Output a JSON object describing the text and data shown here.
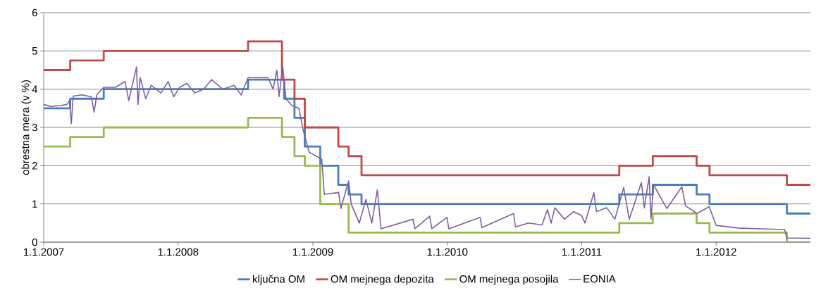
{
  "chart_data": {
    "type": "step",
    "ylabel": "obrestna mera (v %)",
    "ylim": [
      0,
      6
    ],
    "yticks": [
      0,
      1,
      2,
      3,
      4,
      5,
      6
    ],
    "xlim": [
      "2007-01-01",
      "2012-09-13"
    ],
    "xticks": [
      {
        "value": "2007-01-01",
        "label": "1.1.2007"
      },
      {
        "value": "2008-01-01",
        "label": "1.1.2008"
      },
      {
        "value": "2009-01-01",
        "label": "1.1.2009"
      },
      {
        "value": "2010-01-01",
        "label": "1.1.2010"
      },
      {
        "value": "2011-01-01",
        "label": "1.1.2011"
      },
      {
        "value": "2012-01-01",
        "label": "1.1.2012"
      }
    ],
    "grid": "y",
    "legend": "bottom",
    "marker": "none",
    "line_style": "solid",
    "series": [
      {
        "name": "ključna OM",
        "color": "#4a7ebb",
        "x": [
          "2007-01-01",
          "2007-03-14",
          "2007-06-13",
          "2008-07-09",
          "2008-10-15",
          "2008-11-12",
          "2008-12-10",
          "2009-01-21",
          "2009-03-11",
          "2009-04-08",
          "2009-05-13",
          "2011-04-13",
          "2011-07-13",
          "2011-11-09",
          "2011-12-14",
          "2012-07-11",
          "2012-09-13"
        ],
        "values": [
          3.5,
          3.75,
          4.0,
          4.25,
          3.75,
          3.25,
          2.5,
          2.0,
          1.5,
          1.25,
          1.0,
          1.25,
          1.5,
          1.25,
          1.0,
          0.75,
          0.75
        ]
      },
      {
        "name": "OM mejnega depozita",
        "color": "#be4b48",
        "x": [
          "2007-01-01",
          "2007-03-14",
          "2007-06-13",
          "2008-07-09",
          "2008-10-09",
          "2008-11-12",
          "2008-12-10",
          "2009-03-11",
          "2009-04-08",
          "2009-05-13",
          "2011-04-13",
          "2011-07-13",
          "2011-11-09",
          "2011-12-14",
          "2012-07-11",
          "2012-09-13"
        ],
        "values": [
          4.5,
          4.75,
          5.0,
          5.25,
          4.25,
          3.75,
          3.0,
          2.5,
          2.25,
          1.75,
          2.0,
          2.25,
          2.0,
          1.75,
          1.5,
          1.5
        ]
      },
      {
        "name": "OM mejnega posojila",
        "color": "#98b954",
        "x": [
          "2007-01-01",
          "2007-03-14",
          "2007-06-13",
          "2008-07-09",
          "2008-10-09",
          "2008-11-12",
          "2008-12-10",
          "2009-01-21",
          "2009-04-08",
          "2011-04-13",
          "2011-07-13",
          "2011-11-09",
          "2011-12-14",
          "2012-07-11",
          "2012-09-13"
        ],
        "values": [
          2.5,
          2.75,
          3.0,
          3.25,
          2.75,
          2.25,
          2.0,
          1.0,
          0.25,
          0.5,
          0.75,
          0.5,
          0.25,
          0.0,
          0.0
        ]
      },
      {
        "name": "EONIA",
        "type": "line",
        "color": "#7d60a0",
        "x": [
          "2007-01-01",
          "2007-01-20",
          "2007-02-15",
          "2007-03-05",
          "2007-03-12",
          "2007-03-17",
          "2007-03-22",
          "2007-04-15",
          "2007-05-10",
          "2007-05-18",
          "2007-05-25",
          "2007-06-13",
          "2007-07-15",
          "2007-08-10",
          "2007-08-20",
          "2007-09-10",
          "2007-09-14",
          "2007-09-20",
          "2007-10-05",
          "2007-10-20",
          "2007-11-15",
          "2007-12-05",
          "2007-12-20",
          "2008-01-05",
          "2008-01-25",
          "2008-02-15",
          "2008-03-10",
          "2008-04-01",
          "2008-05-01",
          "2008-06-01",
          "2008-06-20",
          "2008-07-09",
          "2008-08-01",
          "2008-09-01",
          "2008-09-15",
          "2008-09-25",
          "2008-10-01",
          "2008-10-11",
          "2008-10-20",
          "2008-11-05",
          "2008-11-24",
          "2008-12-05",
          "2008-12-22",
          "2009-01-25",
          "2009-02-01",
          "2009-03-12",
          "2009-03-18",
          "2009-04-08",
          "2009-04-15",
          "2009-05-07",
          "2009-05-25",
          "2009-06-10",
          "2009-06-25",
          "2009-07-05",
          "2009-09-30",
          "2009-10-05",
          "2009-11-14",
          "2009-11-20",
          "2009-12-31",
          "2010-01-05",
          "2010-03-31",
          "2010-04-05",
          "2010-06-30",
          "2010-07-05",
          "2010-08-10",
          "2010-09-15",
          "2010-09-30",
          "2010-10-10",
          "2010-10-20",
          "2010-11-15",
          "2010-12-10",
          "2010-12-31",
          "2011-01-10",
          "2011-02-03",
          "2011-02-10",
          "2011-03-10",
          "2011-04-01",
          "2011-04-25",
          "2011-05-10",
          "2011-06-12",
          "2011-06-20",
          "2011-07-03",
          "2011-07-08",
          "2011-07-15",
          "2011-08-20",
          "2011-09-30",
          "2011-10-10",
          "2011-11-10",
          "2011-12-13",
          "2012-01-01",
          "2012-03-01",
          "2012-05-01",
          "2012-07-05",
          "2012-07-11",
          "2012-09-13"
        ],
        "values": [
          3.6,
          3.55,
          3.57,
          3.6,
          3.7,
          3.1,
          3.82,
          3.85,
          3.8,
          3.4,
          3.85,
          4.05,
          4.05,
          4.2,
          3.7,
          4.58,
          3.6,
          4.3,
          3.75,
          4.1,
          3.9,
          4.2,
          3.8,
          4.05,
          4.15,
          3.9,
          4.0,
          4.25,
          4.0,
          4.1,
          3.85,
          4.3,
          4.3,
          4.3,
          4.0,
          4.5,
          3.8,
          4.6,
          3.75,
          3.57,
          3.5,
          2.95,
          2.35,
          2.17,
          1.25,
          1.3,
          0.88,
          1.6,
          1.0,
          0.5,
          1.12,
          0.5,
          1.37,
          0.35,
          0.6,
          0.35,
          0.68,
          0.35,
          0.65,
          0.35,
          0.65,
          0.38,
          0.75,
          0.4,
          0.5,
          0.45,
          0.85,
          0.5,
          0.9,
          0.6,
          0.8,
          0.7,
          0.5,
          1.3,
          0.8,
          0.9,
          0.6,
          1.43,
          0.6,
          1.56,
          0.9,
          1.71,
          0.6,
          1.5,
          0.88,
          1.45,
          0.95,
          0.75,
          0.93,
          0.44,
          0.37,
          0.35,
          0.33,
          0.11,
          0.1
        ]
      }
    ]
  }
}
